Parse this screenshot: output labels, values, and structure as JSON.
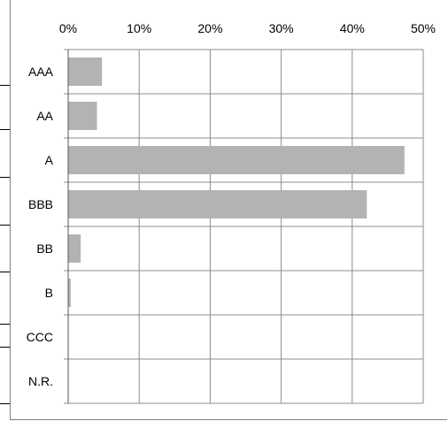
{
  "chart_data": {
    "type": "bar",
    "orientation": "horizontal",
    "categories": [
      "AAA",
      "AA",
      "A",
      "BBB",
      "BB",
      "B",
      "CCC",
      "N.R."
    ],
    "values": [
      4.7,
      4.0,
      47.3,
      42.0,
      1.7,
      0.3,
      0,
      0
    ],
    "xlim": [
      0,
      50
    ],
    "xticks": [
      0,
      10,
      20,
      30,
      40,
      50
    ],
    "xtick_labels": [
      "0%",
      "10%",
      "20%",
      "30%",
      "40%",
      "50%"
    ],
    "x_axis_position": "top",
    "grid": true,
    "bar_color": "#b3b3b3",
    "title": "",
    "xlabel": "",
    "ylabel": ""
  }
}
